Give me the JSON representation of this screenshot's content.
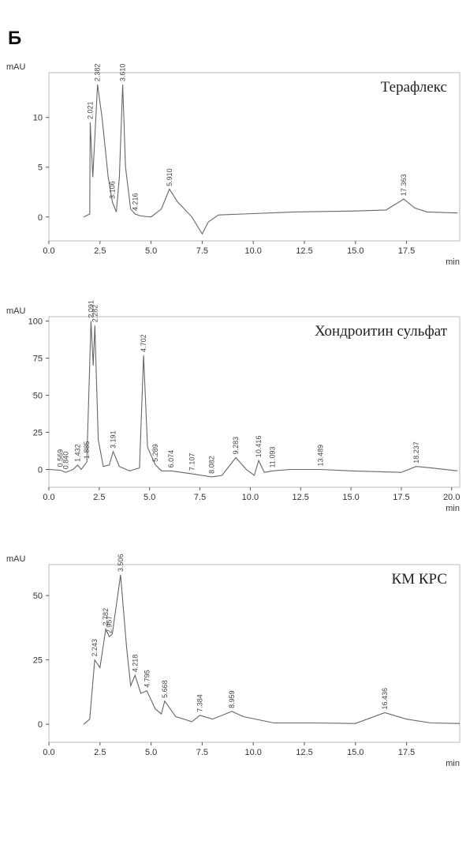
{
  "panel_label": "Б",
  "chart_data": [
    {
      "type": "line",
      "title": "Терафлекс",
      "y_label": "mAU",
      "x_label": "min",
      "color": "#666",
      "xlim": [
        0,
        20.1
      ],
      "ylim": [
        -2.4,
        14.5
      ],
      "xticks": [
        {
          "value": 0,
          "label": "0.0"
        },
        2.5,
        {
          "value": 5,
          "label": "5.0"
        },
        7.5,
        {
          "value": 10,
          "label": "10.0"
        },
        12.5,
        {
          "value": 15,
          "label": "15.0"
        },
        17.5
      ],
      "yticks": [
        0,
        5,
        10
      ],
      "x": [
        1.7,
        2.0,
        2.021,
        2.15,
        2.382,
        2.6,
        2.9,
        3.106,
        3.3,
        3.45,
        3.61,
        3.75,
        4.0,
        4.216,
        4.5,
        5.0,
        5.5,
        5.9,
        6.3,
        7.0,
        7.5,
        7.8,
        8.3,
        9.5,
        12,
        15,
        16.5,
        17.363,
        17.9,
        18.5,
        20
      ],
      "values": [
        0,
        0.3,
        9.5,
        4,
        13.3,
        10,
        4,
        1.5,
        0.5,
        4,
        13.3,
        5,
        0.8,
        0.3,
        0.1,
        0,
        0.8,
        2.8,
        1.5,
        0,
        -1.7,
        -0.5,
        0.2,
        0.3,
        0.5,
        0.6,
        0.7,
        1.8,
        0.9,
        0.5,
        0.4
      ],
      "peaks": [
        {
          "x": 2.021,
          "label": "2.021"
        },
        {
          "x": 2.382,
          "label": "2.382"
        },
        {
          "x": 3.106,
          "label": "3.106"
        },
        {
          "x": 3.61,
          "label": "3.610"
        },
        {
          "x": 4.216,
          "label": "4.216"
        },
        {
          "x": 5.91,
          "label": "5.910"
        },
        {
          "x": 17.363,
          "label": "17.363"
        }
      ]
    },
    {
      "type": "line",
      "title": "Хондроитин сульфат",
      "y_label": "mAU",
      "x_label": "min",
      "color": "#666",
      "xlim": [
        0,
        20.4
      ],
      "ylim": [
        -12,
        103
      ],
      "xticks": [
        {
          "value": 0,
          "label": "0.0"
        },
        2.5,
        {
          "value": 5,
          "label": "5.0"
        },
        7.5,
        {
          "value": 10,
          "label": "10.0"
        },
        12.5,
        {
          "value": 15,
          "label": "15.0"
        },
        17.5,
        {
          "value": 20,
          "label": "20.0"
        }
      ],
      "yticks": [
        0,
        25,
        50,
        75,
        100
      ],
      "x": [
        0,
        0.569,
        0.84,
        1.2,
        1.432,
        1.6,
        1.885,
        2.091,
        2.2,
        2.282,
        2.45,
        2.7,
        3.0,
        3.191,
        3.5,
        4.0,
        4.5,
        4.702,
        4.9,
        5.289,
        5.6,
        6.074,
        7.107,
        8.082,
        8.6,
        9.283,
        9.8,
        10.2,
        10.416,
        10.7,
        11.093,
        12,
        13.489,
        15,
        17.5,
        18.237,
        19,
        20.3
      ],
      "values": [
        0,
        -0.5,
        -2,
        0,
        3,
        0,
        5,
        100,
        70,
        97,
        20,
        2,
        3,
        12,
        2,
        -1,
        1,
        77,
        15,
        3,
        -1,
        -1,
        -3,
        -5,
        -4,
        8,
        0,
        -4,
        6,
        -2,
        -1,
        0,
        0,
        -1,
        -2,
        2,
        1,
        -1
      ],
      "peaks": [
        {
          "x": 0.569,
          "label": "0.569"
        },
        {
          "x": 0.84,
          "label": "0.840"
        },
        {
          "x": 1.432,
          "label": "1.432"
        },
        {
          "x": 1.885,
          "label": "1.885"
        },
        {
          "x": 2.091,
          "label": "2.091"
        },
        {
          "x": 2.282,
          "label": "2.282"
        },
        {
          "x": 3.191,
          "label": "3.191"
        },
        {
          "x": 4.702,
          "label": "4.702"
        },
        {
          "x": 5.289,
          "label": "5.289"
        },
        {
          "x": 6.074,
          "label": "6.074"
        },
        {
          "x": 7.107,
          "label": "7.107"
        },
        {
          "x": 8.082,
          "label": "8.082"
        },
        {
          "x": 9.283,
          "label": "9.283"
        },
        {
          "x": 10.416,
          "label": "10.416"
        },
        {
          "x": 11.093,
          "label": "11.093"
        },
        {
          "x": 13.489,
          "label": "13.489"
        },
        {
          "x": 18.237,
          "label": "18.237"
        }
      ]
    },
    {
      "type": "line",
      "title": "КМ КРС",
      "y_label": "mAU",
      "x_label": "min",
      "color": "#666",
      "xlim": [
        0,
        20.1
      ],
      "ylim": [
        -7,
        62
      ],
      "xticks": [
        {
          "value": 0,
          "label": "0.0"
        },
        2.5,
        {
          "value": 5,
          "label": "5.0"
        },
        7.5,
        {
          "value": 10,
          "label": "10.0"
        },
        12.5,
        {
          "value": 15,
          "label": "15.0"
        },
        17.5
      ],
      "yticks": [
        0,
        25,
        50
      ],
      "x": [
        1.7,
        2.0,
        2.243,
        2.5,
        2.782,
        2.957,
        3.1,
        3.506,
        3.8,
        4.0,
        4.218,
        4.5,
        4.795,
        5.2,
        5.5,
        5.668,
        6.2,
        7.0,
        7.384,
        8.0,
        8.959,
        9.5,
        11,
        13,
        15,
        16.436,
        17.5,
        18.7,
        20.1
      ],
      "values": [
        0,
        2,
        25,
        22,
        37,
        34,
        35,
        58,
        30,
        15,
        19,
        12,
        13,
        6,
        4,
        9,
        3,
        1,
        3.5,
        2,
        5,
        3,
        0.5,
        0.5,
        0.3,
        4.5,
        2,
        0.5,
        0.3
      ],
      "peaks": [
        {
          "x": 2.243,
          "label": "2.243"
        },
        {
          "x": 2.782,
          "label": "2.782"
        },
        {
          "x": 2.957,
          "label": "2.957"
        },
        {
          "x": 3.506,
          "label": "3.506"
        },
        {
          "x": 4.218,
          "label": "4.218"
        },
        {
          "x": 4.795,
          "label": "4.795"
        },
        {
          "x": 5.668,
          "label": "5.668"
        },
        {
          "x": 7.384,
          "label": "7.384"
        },
        {
          "x": 8.959,
          "label": "8.959"
        },
        {
          "x": 16.436,
          "label": "16.436"
        }
      ]
    }
  ]
}
